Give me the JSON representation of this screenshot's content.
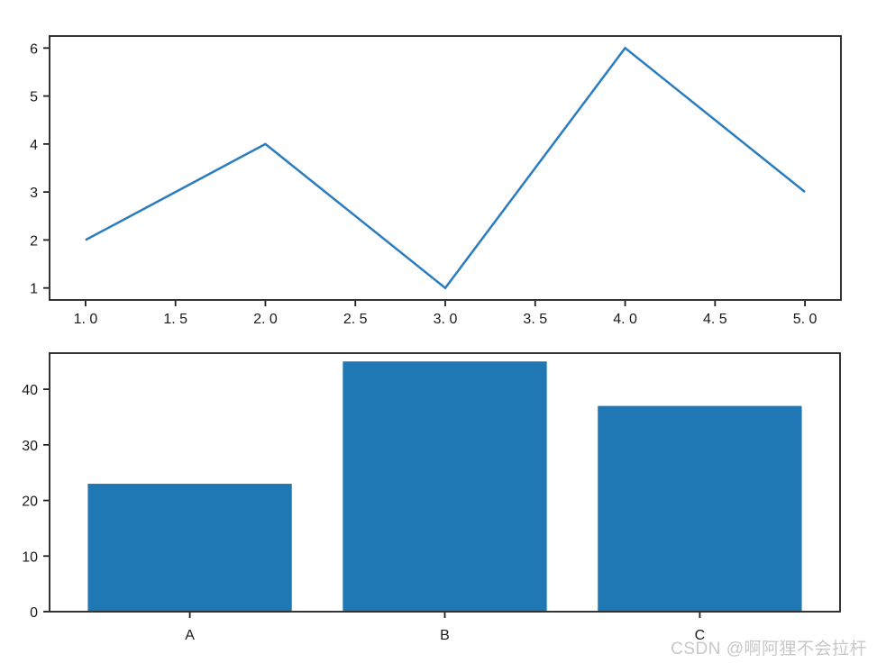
{
  "watermark": {
    "text": "CSDN @啊阿狸不会拉杆"
  },
  "colors": {
    "accent": "#1f77b4",
    "line": "#2b7dbd",
    "spine": "#1f1f1f",
    "tick_label": "#1a1a1a",
    "watermark": "#c8c8c8",
    "background": "#ffffff"
  },
  "chart_data": [
    {
      "type": "line",
      "title": "",
      "xlabel": "",
      "ylabel": "",
      "x": [
        1,
        2,
        3,
        4,
        5
      ],
      "y": [
        2,
        4,
        1,
        6,
        3
      ],
      "xlim": [
        0.8,
        5.2
      ],
      "ylim": [
        0.75,
        6.25
      ],
      "xticks": {
        "values": [
          1.0,
          1.5,
          2.0,
          2.5,
          3.0,
          3.5,
          4.0,
          4.5,
          5.0
        ],
        "labels": [
          "1. 0",
          "1. 5",
          "2. 0",
          "2. 5",
          "3. 0",
          "3. 5",
          "4. 0",
          "4. 5",
          "5. 0"
        ]
      },
      "yticks": {
        "values": [
          1,
          2,
          3,
          4,
          5,
          6
        ],
        "labels": [
          "1",
          "2",
          "3",
          "4",
          "5",
          "6"
        ]
      },
      "grid": false,
      "legend": null,
      "line_width": 2.5
    },
    {
      "type": "bar",
      "title": "",
      "xlabel": "",
      "ylabel": "",
      "categories": [
        "A",
        "B",
        "C"
      ],
      "values": [
        23,
        45,
        37
      ],
      "xlim": [
        -0.55,
        2.55
      ],
      "ylim": [
        0,
        46.5
      ],
      "yticks": {
        "values": [
          0,
          10,
          20,
          30,
          40
        ],
        "labels": [
          "0",
          "10",
          "20",
          "30",
          "40"
        ]
      },
      "bar_width_fraction": 0.8,
      "grid": false,
      "legend": null
    }
  ]
}
